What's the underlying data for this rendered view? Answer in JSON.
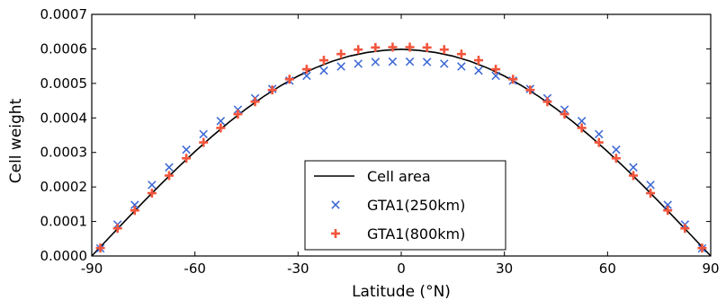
{
  "chart_data": {
    "type": "scatter",
    "xlabel": "Latitude (°N)",
    "ylabel": "Cell weight",
    "xlim": [
      -90,
      90
    ],
    "ylim": [
      0,
      0.0007
    ],
    "x_ticks": [
      "-90",
      "-60",
      "-30",
      "0",
      "30",
      "60",
      "90"
    ],
    "y_ticks": [
      "0.0000",
      "0.0001",
      "0.0002",
      "0.0003",
      "0.0004",
      "0.0005",
      "0.0006",
      "0.0007"
    ],
    "grid": false,
    "legend_position": "lower-center",
    "series": [
      {
        "name": "Cell area",
        "kind": "line",
        "color": "#000000",
        "x": [
          -90,
          -85,
          -80,
          -75,
          -70,
          -65,
          -60,
          -55,
          -50,
          -45,
          -40,
          -35,
          -30,
          -25,
          -20,
          -15,
          -10,
          -5,
          0,
          5,
          10,
          15,
          20,
          25,
          30,
          35,
          40,
          45,
          50,
          55,
          60,
          65,
          70,
          75,
          80,
          85,
          90
        ],
        "y": [
          0.0,
          5.27e-05,
          0.000105,
          0.0001566,
          0.000207,
          0.0002558,
          0.0003025,
          0.0003468,
          0.0003884,
          0.000427,
          0.0004622,
          0.0004937,
          0.0005214,
          0.000545,
          0.0005643,
          0.0005792,
          0.0005895,
          0.0005958,
          0.000599,
          0.0005958,
          0.0005895,
          0.0005792,
          0.0005643,
          0.000545,
          0.0005214,
          0.0004937,
          0.0004622,
          0.000427,
          0.0003884,
          0.0003468,
          0.0003025,
          0.0002558,
          0.000207,
          0.0001566,
          0.000105,
          5.27e-05,
          0.0
        ]
      },
      {
        "name": "GTA1(250km)",
        "kind": "x-marker",
        "color": "#3a66d4",
        "x": [
          -87.5,
          -82.5,
          -77.5,
          -72.5,
          -67.5,
          -62.5,
          -57.5,
          -52.5,
          -47.5,
          -42.5,
          -37.5,
          -32.5,
          -27.5,
          -22.5,
          -17.5,
          -12.5,
          -7.5,
          -2.5,
          2.5,
          7.5,
          12.5,
          17.5,
          22.5,
          27.5,
          32.5,
          37.5,
          42.5,
          47.5,
          52.5,
          57.5,
          62.5,
          67.5,
          72.5,
          77.5,
          82.5,
          87.5
        ],
        "y": [
          2.2e-05,
          9.1e-05,
          0.000148,
          0.000206,
          0.000257,
          0.000308,
          0.000353,
          0.000391,
          0.000424,
          0.000457,
          0.000484,
          0.000508,
          0.000522,
          0.000537,
          0.000549,
          0.000557,
          0.000562,
          0.000563,
          0.000563,
          0.000562,
          0.000557,
          0.000549,
          0.000537,
          0.000522,
          0.000508,
          0.000484,
          0.000457,
          0.000424,
          0.000391,
          0.000353,
          0.000308,
          0.000257,
          0.000206,
          0.000148,
          9.1e-05,
          2.2e-05
        ]
      },
      {
        "name": "GTA1(800km)",
        "kind": "plus-marker",
        "color": "#f2553c",
        "x": [
          -87.5,
          -82.5,
          -77.5,
          -72.5,
          -67.5,
          -62.5,
          -57.5,
          -52.5,
          -47.5,
          -42.5,
          -37.5,
          -32.5,
          -27.5,
          -22.5,
          -17.5,
          -12.5,
          -7.5,
          -2.5,
          2.5,
          7.5,
          12.5,
          17.5,
          22.5,
          27.5,
          32.5,
          37.5,
          42.5,
          47.5,
          52.5,
          57.5,
          62.5,
          67.5,
          72.5,
          77.5,
          82.5,
          87.5
        ],
        "y": [
          2.3e-05,
          8e-05,
          0.000132,
          0.000182,
          0.000233,
          0.000283,
          0.000329,
          0.000371,
          0.000411,
          0.000447,
          0.000481,
          0.000512,
          0.000541,
          0.000567,
          0.000585,
          0.000598,
          0.000604,
          0.000605,
          0.000605,
          0.000604,
          0.000598,
          0.000585,
          0.000567,
          0.000541,
          0.000512,
          0.000481,
          0.000447,
          0.000411,
          0.000371,
          0.000329,
          0.000283,
          0.000233,
          0.000182,
          0.000132,
          8e-05,
          2.3e-05
        ]
      }
    ]
  }
}
